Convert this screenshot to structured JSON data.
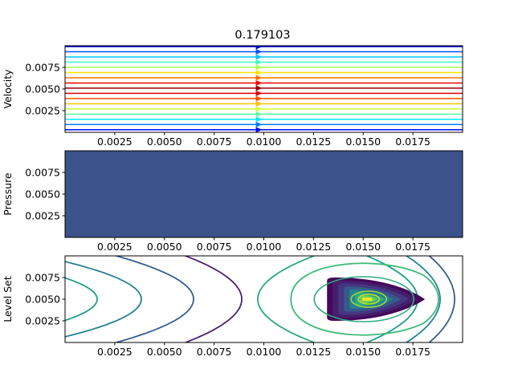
{
  "figure": {
    "title": "0.179103"
  },
  "chart_data": [
    {
      "type": "line",
      "subtype": "streamline",
      "ylabel": "Velocity",
      "xlim": [
        0,
        0.02
      ],
      "ylim": [
        0,
        0.01
      ],
      "xticks": [
        "0.0025",
        "0.0050",
        "0.0075",
        "0.0100",
        "0.0125",
        "0.0150",
        "0.0175"
      ],
      "yticks": [
        "0.0025",
        "0.0050",
        "0.0075"
      ],
      "streamline_y": [
        0.0003,
        0.0009,
        0.0015,
        0.0021,
        0.0027,
        0.0033,
        0.0039,
        0.0045,
        0.0051,
        0.0057,
        0.0063,
        0.0069,
        0.0075,
        0.0081,
        0.0087,
        0.0093,
        0.0099
      ],
      "arrow_x": 0.00972,
      "colormap": "jet"
    },
    {
      "type": "heatmap",
      "subtype": "filled-contour",
      "ylabel": "Pressure",
      "xlim": [
        0,
        0.02
      ],
      "ylim": [
        0,
        0.01
      ],
      "xticks": [
        "0.0025",
        "0.0050",
        "0.0075",
        "0.0100",
        "0.0125",
        "0.0150",
        "0.0175"
      ],
      "yticks": [
        "0.0025",
        "0.0050",
        "0.0075"
      ],
      "fill_color": "#3b528b"
    },
    {
      "type": "heatmap",
      "subtype": "contour",
      "ylabel": "Level Set",
      "xlim": [
        0,
        0.02
      ],
      "ylim": [
        0,
        0.01
      ],
      "xticks": [
        "0.0025",
        "0.0050",
        "0.0075",
        "0.0100",
        "0.0125",
        "0.0150",
        "0.0175"
      ],
      "yticks": [
        "0.0025",
        "0.0050",
        "0.0075"
      ],
      "colormap": "viridis",
      "center": [
        0.0152,
        0.005
      ]
    }
  ]
}
